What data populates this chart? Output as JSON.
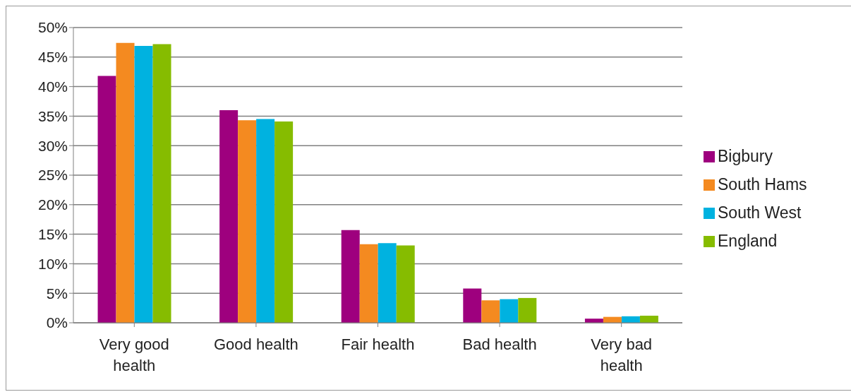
{
  "chart_data": {
    "type": "bar",
    "categories": [
      "Very good health",
      "Good health",
      "Fair health",
      "Bad health",
      "Very bad health"
    ],
    "series": [
      {
        "name": "Bigbury",
        "color": "#9e007e",
        "values": [
          41.8,
          36.0,
          15.7,
          5.8,
          0.7
        ]
      },
      {
        "name": "South Hams",
        "color": "#f48a20",
        "values": [
          47.4,
          34.3,
          13.3,
          3.8,
          1.0
        ]
      },
      {
        "name": "South West",
        "color": "#00b2e0",
        "values": [
          46.9,
          34.5,
          13.5,
          4.0,
          1.1
        ]
      },
      {
        "name": "England",
        "color": "#86bc00",
        "values": [
          47.2,
          34.1,
          13.1,
          4.2,
          1.2
        ]
      }
    ],
    "ylim": [
      0,
      50
    ],
    "yticks": [
      {
        "value": 0,
        "label": "0%"
      },
      {
        "value": 5,
        "label": "5%"
      },
      {
        "value": 10,
        "label": "10%"
      },
      {
        "value": 15,
        "label": "15%"
      },
      {
        "value": 20,
        "label": "20%"
      },
      {
        "value": 25,
        "label": "25%"
      },
      {
        "value": 30,
        "label": "30%"
      },
      {
        "value": 35,
        "label": "35%"
      },
      {
        "value": 40,
        "label": "40%"
      },
      {
        "value": 45,
        "label": "45%"
      },
      {
        "value": 50,
        "label": "50%"
      }
    ],
    "grid": "y",
    "legend": "right"
  }
}
